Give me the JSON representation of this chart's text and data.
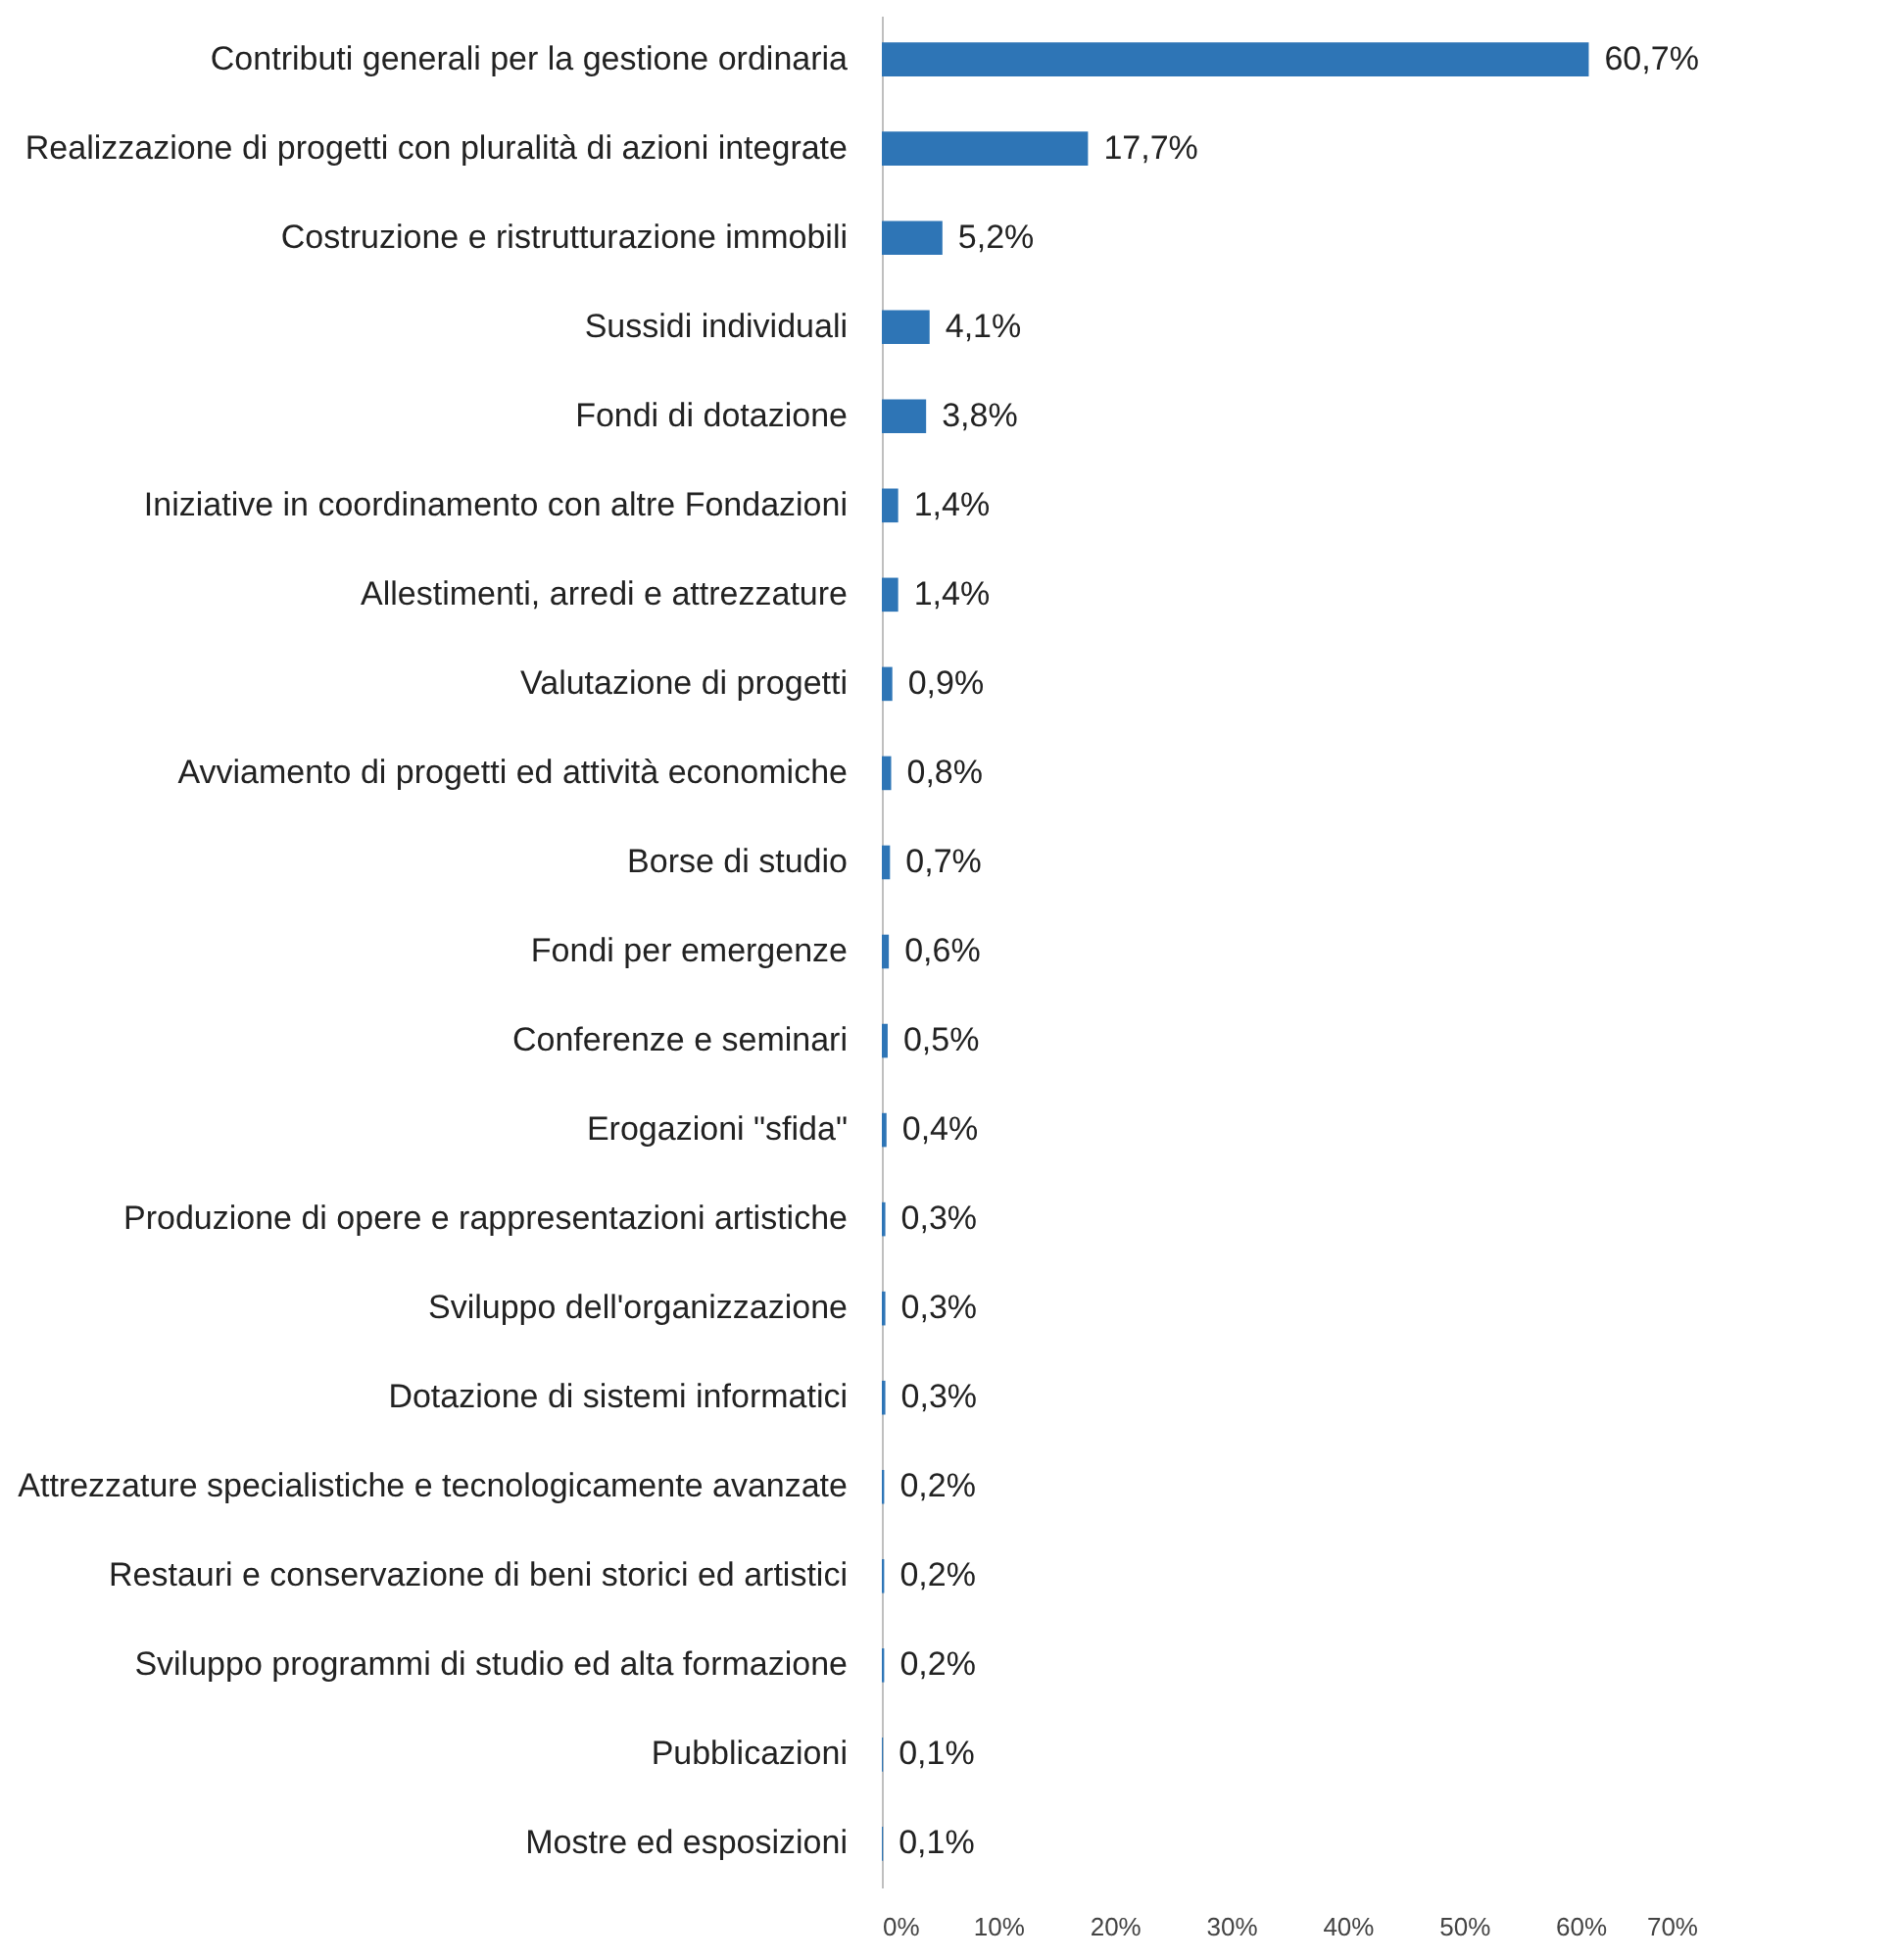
{
  "chart_data": {
    "type": "bar",
    "orientation": "horizontal",
    "categories": [
      "Contributi generali per la gestione ordinaria",
      "Realizzazione di progetti con pluralità di azioni integrate",
      "Costruzione e ristrutturazione immobili",
      "Sussidi individuali",
      "Fondi di dotazione",
      "Iniziative in coordinamento con altre Fondazioni",
      "Allestimenti, arredi e attrezzature",
      "Valutazione di progetti",
      "Avviamento di progetti ed attività economiche",
      "Borse di studio",
      "Fondi per emergenze",
      "Conferenze e seminari",
      "Erogazioni \"sfida\"",
      "Produzione di opere e rappresentazioni artistiche",
      "Sviluppo dell'organizzazione",
      "Dotazione di sistemi informatici",
      "Attrezzature specialistiche e tecnologicamente avanzate",
      "Restauri e conservazione di beni storici ed artistici",
      "Sviluppo programmi di studio ed alta formazione",
      "Pubblicazioni",
      "Mostre ed esposizioni"
    ],
    "values": [
      60.7,
      17.7,
      5.2,
      4.1,
      3.8,
      1.4,
      1.4,
      0.9,
      0.8,
      0.7,
      0.6,
      0.5,
      0.4,
      0.3,
      0.3,
      0.3,
      0.2,
      0.2,
      0.2,
      0.1,
      0.1
    ],
    "value_labels": [
      "60,7%",
      "17,7%",
      "5,2%",
      "4,1%",
      "3,8%",
      "1,4%",
      "1,4%",
      "0,9%",
      "0,8%",
      "0,7%",
      "0,6%",
      "0,5%",
      "0,4%",
      "0,3%",
      "0,3%",
      "0,3%",
      "0,2%",
      "0,2%",
      "0,2%",
      "0,1%",
      "0,1%"
    ],
    "color": "#2e75b6",
    "xlim": [
      0,
      70
    ],
    "xticks": [
      {
        "value": 0,
        "label": "0%"
      },
      {
        "value": 10,
        "label": "10%"
      },
      {
        "value": 20,
        "label": "20%"
      },
      {
        "value": 30,
        "label": "30%"
      },
      {
        "value": 40,
        "label": "40%"
      },
      {
        "value": 50,
        "label": "50%"
      },
      {
        "value": 60,
        "label": "60%"
      },
      {
        "value": 70,
        "label": "70%"
      }
    ],
    "grid": false
  }
}
